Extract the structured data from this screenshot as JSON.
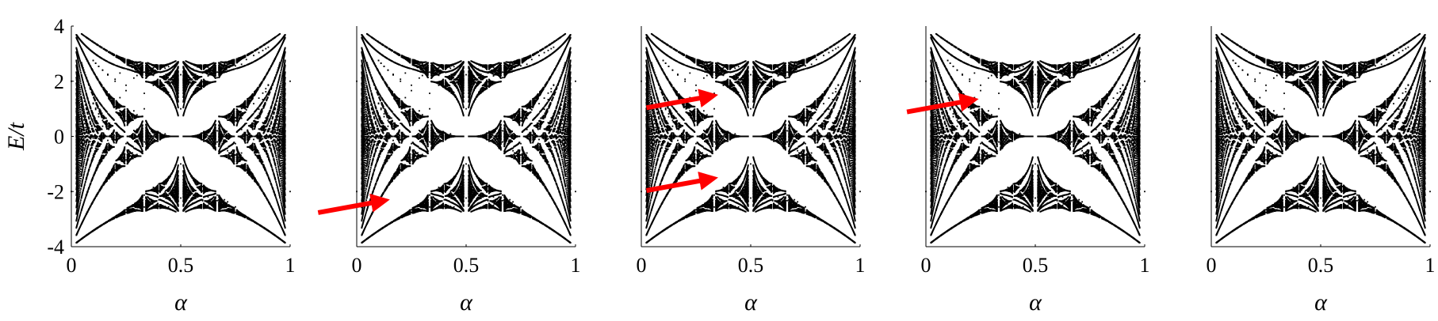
{
  "chart_data": [
    {
      "type": "scatter",
      "xlabel": "α",
      "ylabel": "E/t",
      "xlim": [
        0,
        1
      ],
      "ylim": [
        -4,
        4
      ],
      "xticks": [
        "0",
        "0.5",
        "1"
      ],
      "yticks": [
        "4",
        "2",
        "0",
        "-2",
        "-4"
      ],
      "grid": false,
      "arrows": []
    },
    {
      "type": "scatter",
      "xlabel": "α",
      "ylabel": "",
      "xlim": [
        0,
        1
      ],
      "ylim": [
        -4,
        4
      ],
      "xticks": [
        "0",
        "0.5",
        "1"
      ],
      "yticks": [],
      "grid": false,
      "arrows": [
        {
          "tip": [
            0.18,
            -2.25
          ]
        }
      ]
    },
    {
      "type": "scatter",
      "xlabel": "α",
      "ylabel": "",
      "xlim": [
        0,
        1
      ],
      "ylim": [
        -4,
        4
      ],
      "xticks": [
        "0",
        "0.5",
        "1"
      ],
      "yticks": [],
      "grid": false,
      "arrows": [
        {
          "tip": [
            0.38,
            1.55
          ]
        },
        {
          "tip": [
            0.38,
            -1.45
          ]
        }
      ]
    },
    {
      "type": "scatter",
      "xlabel": "α",
      "ylabel": "",
      "xlim": [
        0,
        1
      ],
      "ylim": [
        -4,
        4
      ],
      "xticks": [
        "0",
        "0.5",
        "1"
      ],
      "yticks": [],
      "grid": false,
      "arrows": [
        {
          "tip": [
            0.27,
            1.4
          ]
        }
      ]
    },
    {
      "type": "scatter",
      "xlabel": "α",
      "ylabel": "",
      "xlim": [
        0,
        1
      ],
      "ylim": [
        -4,
        4
      ],
      "xticks": [
        "0",
        "0.5",
        "1"
      ],
      "yticks": [],
      "grid": false,
      "arrows": []
    }
  ],
  "colors": {
    "points": "#000000",
    "arrow": "#ff0000",
    "background": "#ffffff"
  }
}
